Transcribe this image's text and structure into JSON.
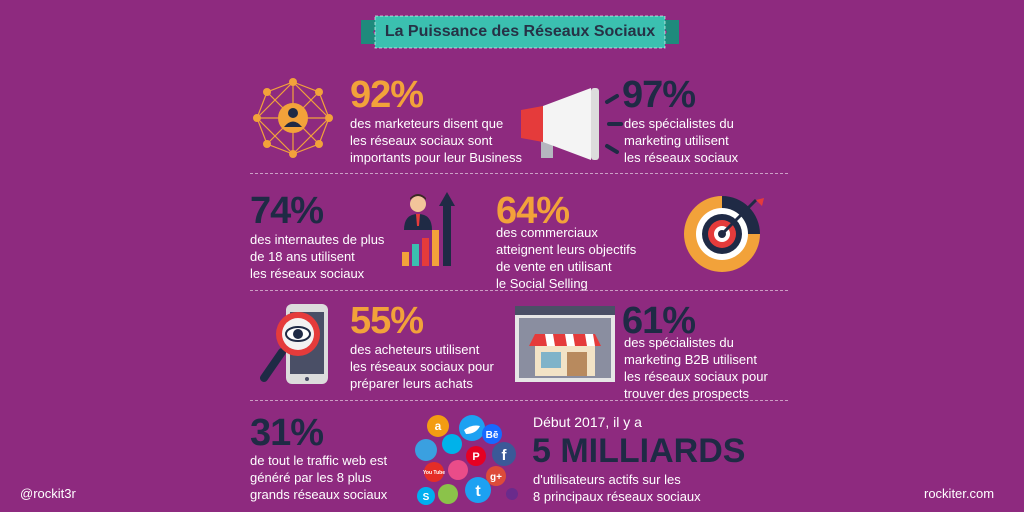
{
  "title": "La Puissance des Réseaux Sociaux",
  "stats": [
    {
      "percent": "92%",
      "lines": [
        "des marketeurs disent que",
        "les réseaux sociaux sont",
        "importants pour leur Business"
      ]
    },
    {
      "percent": "97%",
      "lines": [
        "des spécialistes du",
        "marketing utilisent",
        "les réseaux sociaux"
      ]
    },
    {
      "percent": "74%",
      "lines": [
        "des internautes de plus",
        "de 18 ans utilisent",
        "les réseaux sociaux"
      ]
    },
    {
      "percent": "64%",
      "lines": [
        "des commerciaux",
        "atteignent leurs objectifs",
        "de vente en utilisant",
        "le Social Selling"
      ]
    },
    {
      "percent": "55%",
      "lines": [
        "des acheteurs utilisent",
        "les réseaux sociaux pour",
        "préparer leurs achats"
      ]
    },
    {
      "percent": "61%",
      "lines": [
        "des spécialistes du",
        "marketing B2B utilisent",
        "les réseaux sociaux pour",
        "trouver des prospects"
      ]
    },
    {
      "percent": "31%",
      "lines": [
        "de tout le traffic web est",
        "généré par les 8 plus",
        "grands réseaux sociaux"
      ]
    }
  ],
  "users": {
    "intro": "Début 2017, il y a",
    "headline": "5 MILLIARDS",
    "lines": [
      "d'utilisateurs actifs sur les",
      "8 principaux réseaux sociaux"
    ]
  },
  "social_badges": {
    "be": "Bē",
    "fb": "f",
    "yt": "You Tube",
    "gplus": "g+",
    "amazon": "a",
    "skype": "S"
  },
  "footer": {
    "handle": "@rockit3r",
    "site": "rockiter.com"
  },
  "colors": {
    "background": "#8e2a7f",
    "orange": "#f2a23a",
    "navy": "#1f2a45",
    "teal": "#2bb6a6"
  },
  "icons": [
    "network-icon",
    "megaphone-icon",
    "businessman-growth-icon",
    "target-icon",
    "magnifier-eye-icon",
    "storefront-icon",
    "social-cloud-icon"
  ]
}
